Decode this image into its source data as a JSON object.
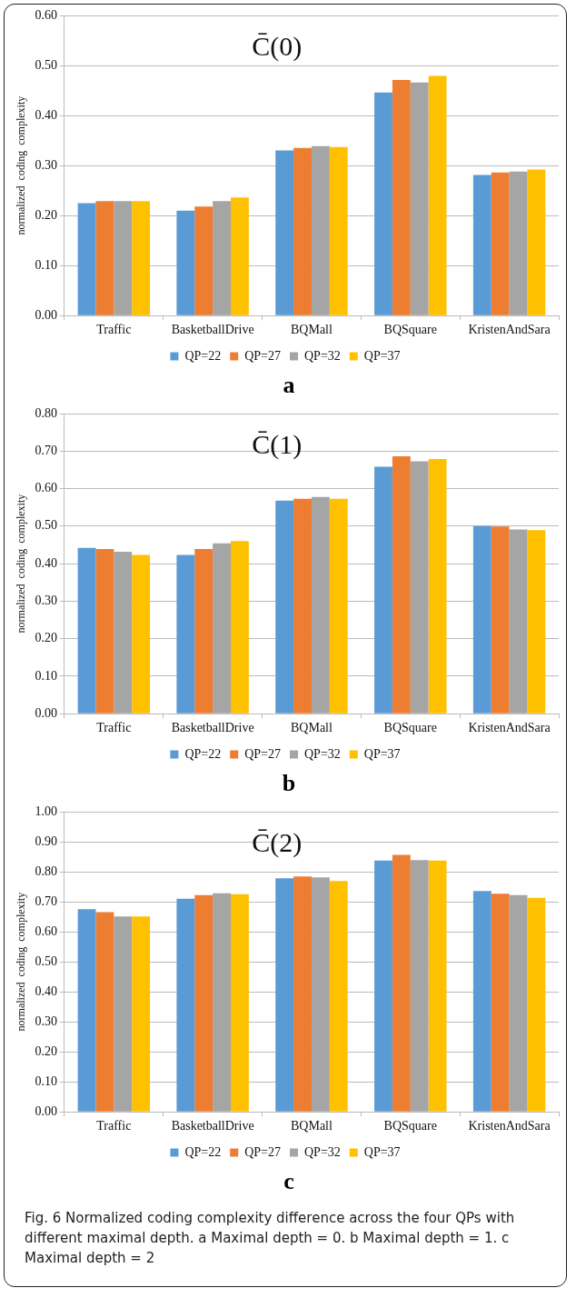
{
  "chart_data": [
    {
      "type": "bar",
      "title": "C̄(0)",
      "ylabel": "normalized  coding  complexity",
      "categories": [
        "Traffic",
        "BasketballDrive",
        "BQMall",
        "BQSquare",
        "KristenAndSara"
      ],
      "series": [
        {
          "name": "QP=22",
          "color": "#5b9bd5",
          "values": [
            0.225,
            0.21,
            0.33,
            0.446,
            0.281
          ]
        },
        {
          "name": "QP=27",
          "color": "#ed7d31",
          "values": [
            0.229,
            0.218,
            0.335,
            0.471,
            0.286
          ]
        },
        {
          "name": "QP=32",
          "color": "#a5a5a5",
          "values": [
            0.229,
            0.229,
            0.339,
            0.466,
            0.288
          ]
        },
        {
          "name": "QP=37",
          "color": "#ffc000",
          "values": [
            0.229,
            0.236,
            0.337,
            0.479,
            0.292
          ]
        }
      ],
      "ylim": [
        0,
        0.6
      ],
      "yticks": [
        {
          "value": 0,
          "label": "0.00"
        },
        {
          "value": 0.1,
          "label": "0.10"
        },
        {
          "value": 0.2,
          "label": "0.20"
        },
        {
          "value": 0.3,
          "label": "0.30"
        },
        {
          "value": 0.4,
          "label": "0.40"
        },
        {
          "value": 0.5,
          "label": "0.50"
        },
        {
          "value": 0.6,
          "label": "0.60"
        }
      ],
      "grid": "y",
      "legend": "bottom",
      "annotations": [
        "a"
      ]
    },
    {
      "type": "bar",
      "title": "C̄(1)",
      "ylabel": "normalized  coding  complexity",
      "categories": [
        "Traffic",
        "BasketballDrive",
        "BQMall",
        "BQSquare",
        "KristenAndSara"
      ],
      "series": [
        {
          "name": "QP=22",
          "color": "#5b9bd5",
          "values": [
            0.442,
            0.423,
            0.568,
            0.658,
            0.5
          ]
        },
        {
          "name": "QP=27",
          "color": "#ed7d31",
          "values": [
            0.439,
            0.439,
            0.573,
            0.686,
            0.499
          ]
        },
        {
          "name": "QP=32",
          "color": "#a5a5a5",
          "values": [
            0.432,
            0.454,
            0.578,
            0.673,
            0.491
          ]
        },
        {
          "name": "QP=37",
          "color": "#ffc000",
          "values": [
            0.423,
            0.46,
            0.573,
            0.679,
            0.489
          ]
        }
      ],
      "ylim": [
        0,
        0.8
      ],
      "yticks": [
        {
          "value": 0,
          "label": "0.00"
        },
        {
          "value": 0.1,
          "label": "0.10"
        },
        {
          "value": 0.2,
          "label": "0.20"
        },
        {
          "value": 0.3,
          "label": "0.30"
        },
        {
          "value": 0.4,
          "label": "0.40"
        },
        {
          "value": 0.5,
          "label": "0.50"
        },
        {
          "value": 0.6,
          "label": "0.60"
        },
        {
          "value": 0.7,
          "label": "0.70"
        },
        {
          "value": 0.8,
          "label": "0.80"
        }
      ],
      "grid": "y",
      "legend": "bottom",
      "annotations": [
        "b"
      ]
    },
    {
      "type": "bar",
      "title": "C̄(2)",
      "ylabel": "normalized  coding  complexity",
      "categories": [
        "Traffic",
        "BasketballDrive",
        "BQMall",
        "BQSquare",
        "KristenAndSara"
      ],
      "series": [
        {
          "name": "QP=22",
          "color": "#5b9bd5",
          "values": [
            0.675,
            0.71,
            0.778,
            0.837,
            0.736
          ]
        },
        {
          "name": "QP=27",
          "color": "#ed7d31",
          "values": [
            0.665,
            0.722,
            0.784,
            0.856,
            0.727
          ]
        },
        {
          "name": "QP=32",
          "color": "#a5a5a5",
          "values": [
            0.651,
            0.728,
            0.781,
            0.839,
            0.722
          ]
        },
        {
          "name": "QP=37",
          "color": "#ffc000",
          "values": [
            0.651,
            0.725,
            0.769,
            0.837,
            0.713
          ]
        }
      ],
      "ylim": [
        0,
        1
      ],
      "yticks": [
        {
          "value": 0,
          "label": "0.00"
        },
        {
          "value": 0.1,
          "label": "0.10"
        },
        {
          "value": 0.2,
          "label": "0.20"
        },
        {
          "value": 0.3,
          "label": "0.30"
        },
        {
          "value": 0.4,
          "label": "0.40"
        },
        {
          "value": 0.5,
          "label": "0.50"
        },
        {
          "value": 0.6,
          "label": "0.60"
        },
        {
          "value": 0.7,
          "label": "0.70"
        },
        {
          "value": 0.8,
          "label": "0.80"
        },
        {
          "value": 0.9,
          "label": "0.90"
        },
        {
          "value": 1,
          "label": "1.00"
        }
      ],
      "grid": "y",
      "legend": "bottom",
      "annotations": [
        "c",
        "Fig. 6 Normalized coding complexity difference across the four QPs with different maximal depth. a Maximal depth = 0. b Maximal depth = 1. c Maximal depth = 2"
      ]
    }
  ]
}
